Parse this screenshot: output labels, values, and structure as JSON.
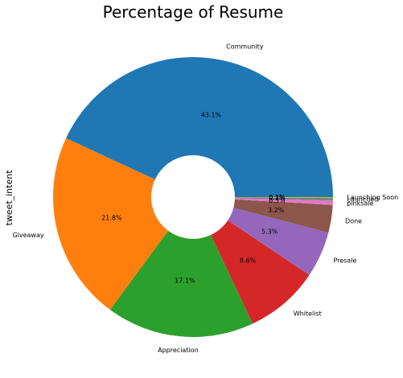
{
  "chart_data": {
    "type": "pie",
    "title": "Percentage of Resume",
    "ylabel": "tweet_intent",
    "donut": true,
    "categories": [
      "Community",
      "Giveaway",
      "Appreciation",
      "Whitelist",
      "Presale",
      "Done",
      "pinksale",
      "Launched",
      "Launching Soon"
    ],
    "values": [
      43.1,
      21.8,
      17.1,
      8.6,
      5.3,
      3.2,
      0.5,
      0.3,
      0.1
    ],
    "value_labels": [
      "43.1%",
      "21.8%",
      "17.1%",
      "8.6%",
      "5.3%",
      "3.2%",
      "0.5%",
      "0.3%",
      "0.1%"
    ],
    "colors": [
      "#1f77b4",
      "#ff7f0e",
      "#2ca02c",
      "#d62728",
      "#9467bd",
      "#8c564b",
      "#e377c2",
      "#7f7f7f",
      "#bcbd22"
    ],
    "start_angle_deg": 0,
    "direction": "counterclockwise"
  }
}
